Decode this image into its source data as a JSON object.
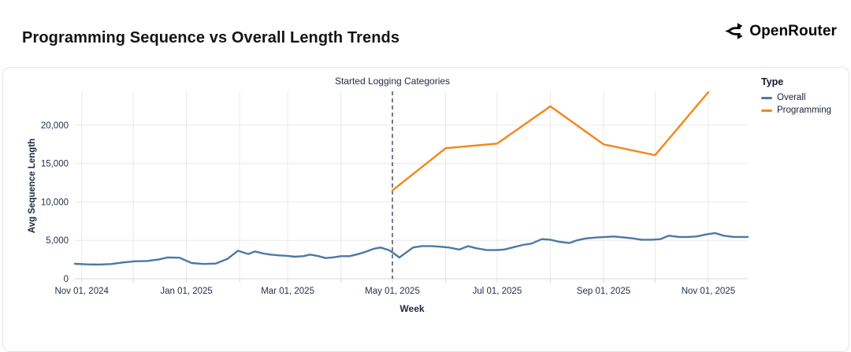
{
  "header": {
    "title": "Programming Sequence vs Overall Length Trends",
    "brand": "OpenRouter"
  },
  "chart_data": {
    "type": "line",
    "xlabel": "Week",
    "ylabel": "Avg Sequence Length",
    "x_domain": [
      "2024-10-28",
      "2025-11-24"
    ],
    "ylim": [
      0,
      24400
    ],
    "grid": true,
    "legend_position": "right",
    "y_ticks": [
      {
        "v": 0,
        "label": "0"
      },
      {
        "v": 5000,
        "label": "5,000"
      },
      {
        "v": 10000,
        "label": "10,000"
      },
      {
        "v": 15000,
        "label": "15,000"
      },
      {
        "v": 20000,
        "label": "20,000"
      }
    ],
    "x_ticks": [
      {
        "date": "2024-11-01",
        "label": "Nov 01, 2024"
      },
      {
        "date": "2025-01-01",
        "label": "Jan 01, 2025"
      },
      {
        "date": "2025-03-01",
        "label": "Mar 01, 2025"
      },
      {
        "date": "2025-05-01",
        "label": "May 01, 2025"
      },
      {
        "date": "2025-07-01",
        "label": "Jul 01, 2025"
      },
      {
        "date": "2025-09-01",
        "label": "Sep 01, 2025"
      },
      {
        "date": "2025-11-01",
        "label": "Nov 01, 2025"
      }
    ],
    "month_lines": [
      "2024-11-01",
      "2024-12-01",
      "2025-01-01",
      "2025-02-01",
      "2025-03-01",
      "2025-04-01",
      "2025-05-01",
      "2025-06-01",
      "2025-07-01",
      "2025-08-01",
      "2025-09-01",
      "2025-10-01",
      "2025-11-01"
    ],
    "annotation": {
      "date": "2025-05-01",
      "label": "Started Logging Categories"
    },
    "legend": {
      "title": "Type",
      "items": [
        {
          "label": "Overall",
          "color": "#4c78a8"
        },
        {
          "label": "Programming",
          "color": "#f58518"
        }
      ]
    },
    "series": [
      {
        "name": "Overall",
        "color": "#4c78a8",
        "points": [
          [
            "2024-10-28",
            1950
          ],
          [
            "2024-11-04",
            1880
          ],
          [
            "2024-11-11",
            1850
          ],
          [
            "2024-11-18",
            1920
          ],
          [
            "2024-11-25",
            2120
          ],
          [
            "2024-12-02",
            2280
          ],
          [
            "2024-12-09",
            2320
          ],
          [
            "2024-12-16",
            2520
          ],
          [
            "2024-12-21",
            2780
          ],
          [
            "2024-12-28",
            2740
          ],
          [
            "2025-01-04",
            2050
          ],
          [
            "2025-01-11",
            1930
          ],
          [
            "2025-01-18",
            1980
          ],
          [
            "2025-01-25",
            2600
          ],
          [
            "2025-01-31",
            3650
          ],
          [
            "2025-02-06",
            3220
          ],
          [
            "2025-02-10",
            3560
          ],
          [
            "2025-02-15",
            3280
          ],
          [
            "2025-02-19",
            3150
          ],
          [
            "2025-02-24",
            3040
          ],
          [
            "2025-03-01",
            2980
          ],
          [
            "2025-03-05",
            2870
          ],
          [
            "2025-03-10",
            2940
          ],
          [
            "2025-03-14",
            3150
          ],
          [
            "2025-03-19",
            2940
          ],
          [
            "2025-03-23",
            2700
          ],
          [
            "2025-03-28",
            2800
          ],
          [
            "2025-04-01",
            2940
          ],
          [
            "2025-04-06",
            2940
          ],
          [
            "2025-04-11",
            3210
          ],
          [
            "2025-04-15",
            3490
          ],
          [
            "2025-04-20",
            3900
          ],
          [
            "2025-04-24",
            4070
          ],
          [
            "2025-04-29",
            3730
          ],
          [
            "2025-05-02",
            3280
          ],
          [
            "2025-05-05",
            2770
          ],
          [
            "2025-05-13",
            4070
          ],
          [
            "2025-05-18",
            4240
          ],
          [
            "2025-05-24",
            4240
          ],
          [
            "2025-05-29",
            4170
          ],
          [
            "2025-06-03",
            4070
          ],
          [
            "2025-06-09",
            3800
          ],
          [
            "2025-06-14",
            4240
          ],
          [
            "2025-06-19",
            3970
          ],
          [
            "2025-06-25",
            3730
          ],
          [
            "2025-06-30",
            3730
          ],
          [
            "2025-07-05",
            3800
          ],
          [
            "2025-07-11",
            4130
          ],
          [
            "2025-07-16",
            4410
          ],
          [
            "2025-07-21",
            4580
          ],
          [
            "2025-07-27",
            5160
          ],
          [
            "2025-08-01",
            5090
          ],
          [
            "2025-08-06",
            4820
          ],
          [
            "2025-08-12",
            4650
          ],
          [
            "2025-08-17",
            5030
          ],
          [
            "2025-08-22",
            5260
          ],
          [
            "2025-08-28",
            5370
          ],
          [
            "2025-09-02",
            5440
          ],
          [
            "2025-09-07",
            5510
          ],
          [
            "2025-09-13",
            5370
          ],
          [
            "2025-09-18",
            5260
          ],
          [
            "2025-09-23",
            5090
          ],
          [
            "2025-09-29",
            5090
          ],
          [
            "2025-10-04",
            5160
          ],
          [
            "2025-10-09",
            5610
          ],
          [
            "2025-10-15",
            5440
          ],
          [
            "2025-10-20",
            5440
          ],
          [
            "2025-10-25",
            5510
          ],
          [
            "2025-10-31",
            5780
          ],
          [
            "2025-11-05",
            5950
          ],
          [
            "2025-11-10",
            5610
          ],
          [
            "2025-11-16",
            5440
          ],
          [
            "2025-11-24",
            5440
          ]
        ]
      },
      {
        "name": "Programming",
        "color": "#f58518",
        "points": [
          [
            "2025-05-01",
            11500
          ],
          [
            "2025-06-01",
            17000
          ],
          [
            "2025-07-01",
            17600
          ],
          [
            "2025-08-01",
            22450
          ],
          [
            "2025-09-01",
            17500
          ],
          [
            "2025-10-01",
            16100
          ],
          [
            "2025-11-01",
            24300
          ]
        ]
      }
    ]
  }
}
